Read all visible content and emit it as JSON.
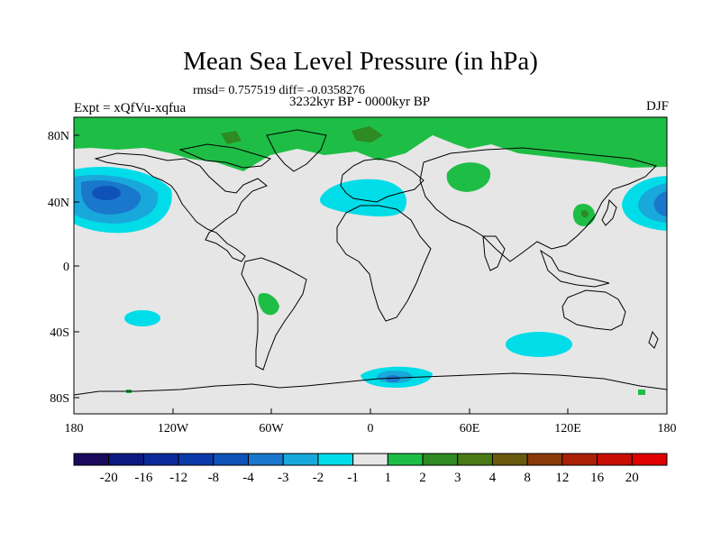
{
  "header": {
    "title": "Mean Sea Level Pressure (in hPa)",
    "stats": "rmsd= 0.757519 diff= -0.0358276",
    "experiment": "Expt = xQfVu-xqfua",
    "period": "3232kyr BP - 0000kyr BP",
    "season": "DJF"
  },
  "axes": {
    "y_ticks": [
      "80N",
      "40N",
      "0",
      "40S",
      "80S"
    ],
    "x_ticks": [
      "180",
      "120W",
      "60W",
      "0",
      "60E",
      "120E",
      "180"
    ]
  },
  "colorbar": {
    "labels": [
      "-20",
      "-16",
      "-12",
      "-8",
      "-4",
      "-3",
      "-2",
      "-1",
      "1",
      "2",
      "3",
      "4",
      "8",
      "12",
      "16",
      "20"
    ],
    "colors": [
      "#1a0a5c",
      "#0d1a80",
      "#0a2a9a",
      "#0a3aaa",
      "#0e52b8",
      "#1a78cc",
      "#19a8dc",
      "#00dde8",
      "#e6e6e6",
      "#1ebe46",
      "#2e8a22",
      "#4a7a16",
      "#6a5a10",
      "#8a3a08",
      "#aa2006",
      "#c80e04",
      "#e00000"
    ]
  },
  "map_style": {
    "background": "#e6e6e6",
    "coast": "#000000"
  }
}
